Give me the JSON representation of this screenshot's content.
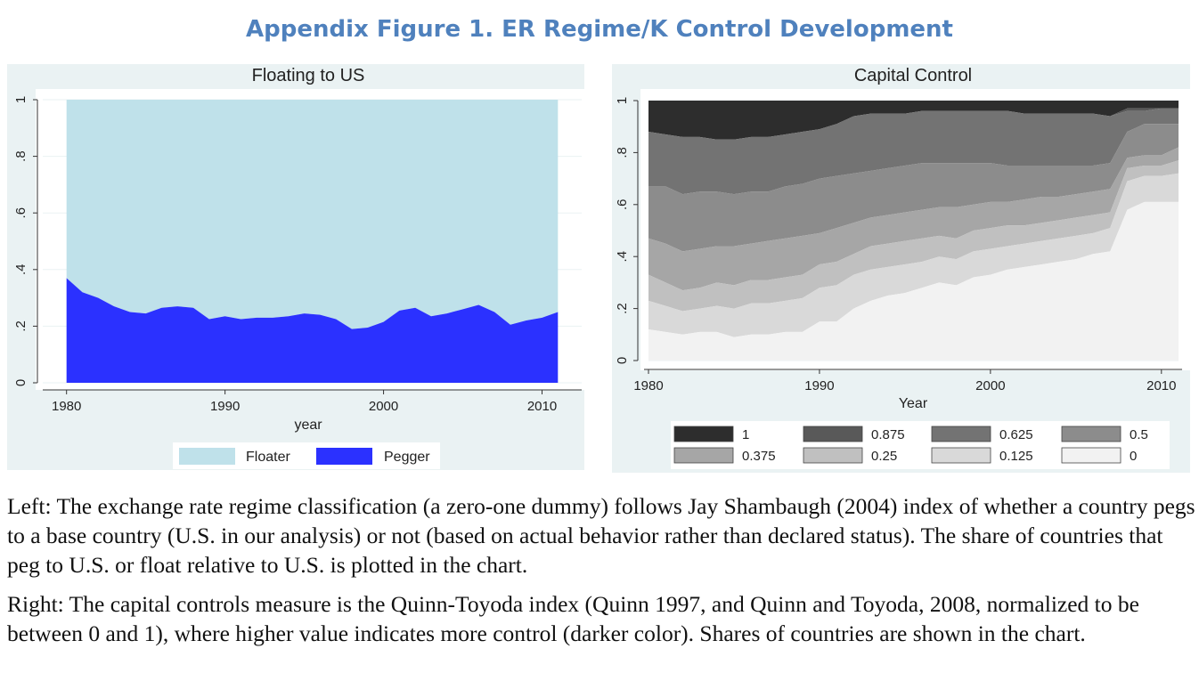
{
  "figure_title": "Appendix Figure 1. ER Regime/K Control Development",
  "captions": {
    "left": "Left: The exchange rate regime classification (a zero-one dummy) follows Jay Shambaugh (2004) index of whether a country pegs to a base country (U.S. in our analysis) or not (based on actual behavior rather than declared status). The share of countries that peg to U.S. or float relative to U.S. is plotted in the chart.",
    "right": "Right: The capital controls measure is the Quinn-Toyoda index (Quinn 1997, and Quinn and Toyoda, 2008, normalized to be between 0 and 1), where higher value indicates more control (darker color). Shares of countries are shown in the chart."
  },
  "chart_data": [
    {
      "type": "area",
      "title": "Floating to US",
      "xlabel": "year",
      "ylabel": "",
      "xlim": [
        1978.5,
        2012.5
      ],
      "ylim": [
        0,
        1
      ],
      "x_ticks": [
        1980,
        1990,
        2000,
        2010
      ],
      "y_ticks": [
        0,
        0.2,
        0.4,
        0.6,
        0.8,
        1
      ],
      "y_tick_labels": [
        "0",
        ".2",
        ".4",
        ".6",
        ".8",
        "1"
      ],
      "grid": true,
      "legend_position": "bottom",
      "x": [
        1980,
        1981,
        1982,
        1983,
        1984,
        1985,
        1986,
        1987,
        1988,
        1989,
        1990,
        1991,
        1992,
        1993,
        1994,
        1995,
        1996,
        1997,
        1998,
        1999,
        2000,
        2001,
        2002,
        2003,
        2004,
        2005,
        2006,
        2007,
        2008,
        2009,
        2010,
        2011
      ],
      "series": [
        {
          "name": "Pegger",
          "color": "#2B31FF",
          "values": [
            0.37,
            0.32,
            0.3,
            0.27,
            0.25,
            0.245,
            0.265,
            0.27,
            0.265,
            0.225,
            0.235,
            0.225,
            0.23,
            0.23,
            0.235,
            0.245,
            0.24,
            0.225,
            0.19,
            0.195,
            0.215,
            0.255,
            0.265,
            0.235,
            0.245,
            0.26,
            0.275,
            0.25,
            0.205,
            0.22,
            0.23,
            0.25
          ]
        },
        {
          "name": "Floater",
          "color": "#BFE1EA",
          "values": [
            0.63,
            0.68,
            0.7,
            0.73,
            0.75,
            0.755,
            0.735,
            0.73,
            0.735,
            0.775,
            0.765,
            0.775,
            0.77,
            0.77,
            0.765,
            0.755,
            0.76,
            0.775,
            0.81,
            0.805,
            0.785,
            0.745,
            0.735,
            0.765,
            0.755,
            0.74,
            0.725,
            0.75,
            0.795,
            0.78,
            0.77,
            0.75
          ]
        }
      ],
      "legend": [
        {
          "label": "Floater",
          "color": "#BFE1EA"
        },
        {
          "label": "Pegger",
          "color": "#2B31FF"
        }
      ]
    },
    {
      "type": "area",
      "title": "Capital Control",
      "xlabel": "Year",
      "ylabel": "",
      "xlim": [
        1978.5,
        2012.5
      ],
      "ylim": [
        -0.02,
        1.02
      ],
      "x_ticks": [
        1980,
        1990,
        2000,
        2010
      ],
      "y_ticks": [
        0,
        0.2,
        0.4,
        0.6,
        0.8,
        1
      ],
      "y_tick_labels": [
        "0",
        ".2",
        ".4",
        ".6",
        ".8",
        "1"
      ],
      "grid": true,
      "legend_position": "bottom",
      "x": [
        1980,
        1981,
        1982,
        1983,
        1984,
        1985,
        1986,
        1987,
        1988,
        1989,
        1990,
        1991,
        1992,
        1993,
        1994,
        1995,
        1996,
        1997,
        1998,
        1999,
        2000,
        2001,
        2002,
        2003,
        2004,
        2005,
        2006,
        2007,
        2008,
        2009,
        2010,
        2011
      ],
      "cumulative_boundaries": [
        {
          "level": "0",
          "upper": [
            0.12,
            0.11,
            0.1,
            0.11,
            0.11,
            0.09,
            0.1,
            0.1,
            0.11,
            0.11,
            0.15,
            0.15,
            0.2,
            0.23,
            0.25,
            0.26,
            0.28,
            0.3,
            0.29,
            0.32,
            0.33,
            0.35,
            0.36,
            0.37,
            0.38,
            0.39,
            0.41,
            0.42,
            0.58,
            0.61,
            0.61,
            0.61
          ]
        },
        {
          "level": "0.125",
          "upper": [
            0.23,
            0.21,
            0.19,
            0.2,
            0.21,
            0.2,
            0.22,
            0.22,
            0.23,
            0.24,
            0.28,
            0.29,
            0.33,
            0.35,
            0.36,
            0.37,
            0.38,
            0.4,
            0.39,
            0.42,
            0.43,
            0.44,
            0.45,
            0.46,
            0.47,
            0.48,
            0.49,
            0.51,
            0.69,
            0.71,
            0.71,
            0.72
          ]
        },
        {
          "level": "0.25",
          "upper": [
            0.33,
            0.3,
            0.27,
            0.28,
            0.3,
            0.29,
            0.31,
            0.31,
            0.32,
            0.33,
            0.37,
            0.38,
            0.41,
            0.44,
            0.45,
            0.46,
            0.47,
            0.48,
            0.47,
            0.5,
            0.51,
            0.52,
            0.52,
            0.53,
            0.54,
            0.55,
            0.56,
            0.57,
            0.74,
            0.75,
            0.75,
            0.77
          ]
        },
        {
          "level": "0.375",
          "upper": [
            0.47,
            0.45,
            0.42,
            0.43,
            0.44,
            0.44,
            0.45,
            0.46,
            0.47,
            0.48,
            0.49,
            0.51,
            0.53,
            0.55,
            0.56,
            0.57,
            0.58,
            0.59,
            0.59,
            0.6,
            0.61,
            0.61,
            0.62,
            0.63,
            0.63,
            0.64,
            0.65,
            0.66,
            0.78,
            0.79,
            0.79,
            0.82
          ]
        },
        {
          "level": "0.5",
          "upper": [
            0.67,
            0.67,
            0.64,
            0.65,
            0.65,
            0.64,
            0.65,
            0.65,
            0.67,
            0.68,
            0.7,
            0.71,
            0.72,
            0.73,
            0.74,
            0.75,
            0.76,
            0.76,
            0.76,
            0.76,
            0.76,
            0.75,
            0.75,
            0.75,
            0.75,
            0.75,
            0.75,
            0.76,
            0.88,
            0.91,
            0.91,
            0.91
          ]
        },
        {
          "level": "0.625",
          "upper": [
            0.88,
            0.87,
            0.86,
            0.86,
            0.85,
            0.85,
            0.86,
            0.86,
            0.87,
            0.88,
            0.89,
            0.91,
            0.94,
            0.95,
            0.95,
            0.95,
            0.96,
            0.96,
            0.96,
            0.96,
            0.96,
            0.96,
            0.95,
            0.95,
            0.95,
            0.95,
            0.95,
            0.94,
            0.96,
            0.96,
            0.97,
            0.97
          ]
        },
        {
          "level": "0.875",
          "upper": [
            0.88,
            0.87,
            0.86,
            0.86,
            0.85,
            0.85,
            0.86,
            0.86,
            0.87,
            0.88,
            0.89,
            0.91,
            0.94,
            0.95,
            0.95,
            0.95,
            0.96,
            0.96,
            0.96,
            0.96,
            0.96,
            0.96,
            0.95,
            0.95,
            0.95,
            0.95,
            0.95,
            0.94,
            0.97,
            0.97,
            0.97,
            0.97
          ]
        },
        {
          "level": "1",
          "upper": [
            1,
            1,
            1,
            1,
            1,
            1,
            1,
            1,
            1,
            1,
            1,
            1,
            1,
            1,
            1,
            1,
            1,
            1,
            1,
            1,
            1,
            1,
            1,
            1,
            1,
            1,
            1,
            1,
            1,
            1,
            1,
            1
          ]
        }
      ],
      "legend": [
        {
          "label": "1",
          "color": "#2D2D2D"
        },
        {
          "label": "0.875",
          "color": "#595959"
        },
        {
          "label": "0.625",
          "color": "#737373"
        },
        {
          "label": "0.5",
          "color": "#8C8C8C"
        },
        {
          "label": "0.375",
          "color": "#A6A6A6"
        },
        {
          "label": "0.25",
          "color": "#C0C0C0"
        },
        {
          "label": "0.125",
          "color": "#D9D9D9"
        },
        {
          "label": "0",
          "color": "#F2F2F2"
        }
      ]
    }
  ]
}
